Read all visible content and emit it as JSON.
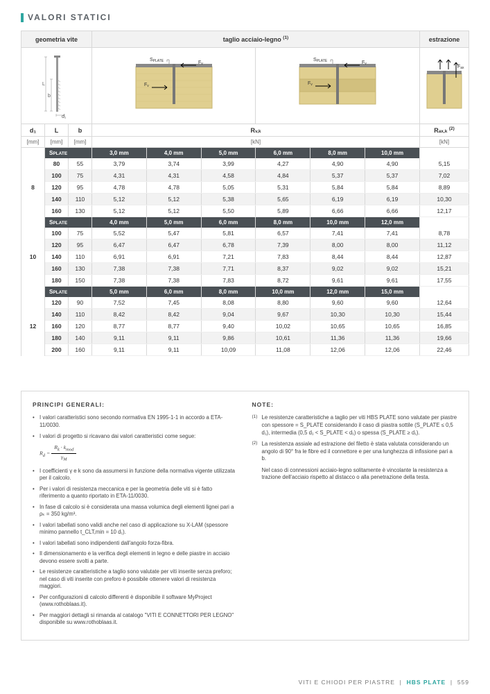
{
  "title": "VALORI STATICI",
  "accent_color": "#2ea6a0",
  "dark_bar": "#4a5055",
  "table": {
    "top_headers": [
      "geometria vite",
      "taglio acciaio-legno",
      "estrazione"
    ],
    "sup1": "(1)",
    "col_headers": {
      "d1": "d₁",
      "L": "L",
      "b": "b",
      "Rvk": "R",
      "Rvk_sub": "v,k",
      "Raxk": "R",
      "Raxk_sub": "ax,k",
      "sup2": "(2)"
    },
    "units": {
      "mm": "[mm]",
      "kN": "[kN]"
    },
    "splate_label": "SPLATE",
    "groups": [
      {
        "d1": "8",
        "splate_cols": [
          "3,0 mm",
          "4,0 mm",
          "5,0 mm",
          "6,0 mm",
          "8,0 mm",
          "10,0 mm"
        ],
        "rows": [
          {
            "L": "80",
            "b": "55",
            "v": [
              "3,79",
              "3,74",
              "3,99",
              "4,27",
              "4,90",
              "4,90"
            ],
            "ax": "5,15"
          },
          {
            "L": "100",
            "b": "75",
            "v": [
              "4,31",
              "4,31",
              "4,58",
              "4,84",
              "5,37",
              "5,37"
            ],
            "ax": "7,02"
          },
          {
            "L": "120",
            "b": "95",
            "v": [
              "4,78",
              "4,78",
              "5,05",
              "5,31",
              "5,84",
              "5,84"
            ],
            "ax": "8,89"
          },
          {
            "L": "140",
            "b": "110",
            "v": [
              "5,12",
              "5,12",
              "5,38",
              "5,65",
              "6,19",
              "6,19"
            ],
            "ax": "10,30"
          },
          {
            "L": "160",
            "b": "130",
            "v": [
              "5,12",
              "5,12",
              "5,50",
              "5,89",
              "6,66",
              "6,66"
            ],
            "ax": "12,17"
          }
        ]
      },
      {
        "d1": "10",
        "splate_cols": [
          "4,0 mm",
          "5,0 mm",
          "6,0 mm",
          "8,0 mm",
          "10,0 mm",
          "12,0 mm"
        ],
        "rows": [
          {
            "L": "100",
            "b": "75",
            "v": [
              "5,52",
              "5,47",
              "5,81",
              "6,57",
              "7,41",
              "7,41"
            ],
            "ax": "8,78"
          },
          {
            "L": "120",
            "b": "95",
            "v": [
              "6,47",
              "6,47",
              "6,78",
              "7,39",
              "8,00",
              "8,00"
            ],
            "ax": "11,12"
          },
          {
            "L": "140",
            "b": "110",
            "v": [
              "6,91",
              "6,91",
              "7,21",
              "7,83",
              "8,44",
              "8,44"
            ],
            "ax": "12,87"
          },
          {
            "L": "160",
            "b": "130",
            "v": [
              "7,38",
              "7,38",
              "7,71",
              "8,37",
              "9,02",
              "9,02"
            ],
            "ax": "15,21"
          },
          {
            "L": "180",
            "b": "150",
            "v": [
              "7,38",
              "7,38",
              "7,83",
              "8,72",
              "9,61",
              "9,61"
            ],
            "ax": "17,55"
          }
        ]
      },
      {
        "d1": "12",
        "splate_cols": [
          "5,0 mm",
          "6,0 mm",
          "8,0 mm",
          "10,0 mm",
          "12,0 mm",
          "15,0 mm"
        ],
        "rows": [
          {
            "L": "120",
            "b": "90",
            "v": [
              "7,52",
              "7,45",
              "8,08",
              "8,80",
              "9,60",
              "9,60"
            ],
            "ax": "12,64"
          },
          {
            "L": "140",
            "b": "110",
            "v": [
              "8,42",
              "8,42",
              "9,04",
              "9,67",
              "10,30",
              "10,30"
            ],
            "ax": "15,44"
          },
          {
            "L": "160",
            "b": "120",
            "v": [
              "8,77",
              "8,77",
              "9,40",
              "10,02",
              "10,65",
              "10,65"
            ],
            "ax": "16,85"
          },
          {
            "L": "180",
            "b": "140",
            "v": [
              "9,11",
              "9,11",
              "9,86",
              "10,61",
              "11,36",
              "11,36"
            ],
            "ax": "19,66"
          },
          {
            "L": "200",
            "b": "160",
            "v": [
              "9,11",
              "9,11",
              "10,09",
              "11,08",
              "12,06",
              "12,06"
            ],
            "ax": "22,46"
          }
        ]
      }
    ]
  },
  "diag_labels": {
    "L": "L",
    "b": "b",
    "d1": "d₁",
    "Splate": "S",
    "Splate_sub": "PLATE",
    "Fv": "F",
    "Fv_sub": "v",
    "Fax": "F",
    "Fax_sub": "ax"
  },
  "notes": {
    "left_title": "PRINCIPI GENERALI:",
    "left_items": [
      "I valori caratteristici sono secondo normativa EN 1995-1-1 in accordo a ETA-11/0030.",
      "I valori di progetto si ricavano dai valori caratteristici come segue:",
      "I coefficienti γ e k sono da assumersi in funzione della normativa vigente utilizzata per il calcolo.",
      "Per i valori di resistenza meccanica e per la geometria delle viti si è fatto riferimento a quanto riportato in ETA-11/0030.",
      "In fase di calcolo si è considerata una massa volumica degli elementi lignei pari a ρₖ = 350 kg/m³.",
      "I valori tabellati sono validi anche nel caso di applicazione su X-LAM (spessore minimo pannello t_CLT,min = 10 d₁).",
      "I valori tabellati sono indipendenti dall'angolo forza-fibra.",
      "Il dimensionamento e la verifica degli elementi in legno e delle piastre in acciaio devono essere svolti a parte.",
      "Le resistenze caratteristiche a taglio sono valutate per viti inserite senza preforo; nel caso di viti inserite con preforo è possibile ottenere valori di resistenza maggiori.",
      "Per configurazioni di calcolo differenti è disponibile il software MyProject (www.rothoblaas.it).",
      "Per maggiori dettagli si rimanda al catalogo \"VITI E CONNETTORI PER LEGNO\" disponibile su www.rothoblaas.it."
    ],
    "formula": {
      "Rd": "R",
      "d_sub": "d",
      "eq": "=",
      "Rk": "R",
      "k_sub": "k",
      "dot": "·",
      "kmod": "k",
      "mod_sub": "mod",
      "gammaM": "γ",
      "M_sub": "M"
    },
    "coeff_sub1": "M",
    "coeff_sub2": "mod",
    "right_title": "NOTE:",
    "right_items": [
      "Le resistenze caratteristiche a taglio per viti HBS PLATE sono valutate per piastre con spessore = S_PLATE considerando il caso di piastra sottile (S_PLATE ≤ 0,5 d₁), intermedia (0,5 d₁ < S_PLATE < d₁) o spessa (S_PLATE ≥ d₁).",
      "La resistenza assiale ad estrazione del filetto è stata valutata considerando un angolo di 90° fra le fibre ed il connettore e per una lunghezza di infissione pari a b."
    ],
    "right_note_extra": "Nel caso di connessioni acciaio-legno solitamente è vincolante la resistenza a trazione dell'acciaio rispetto al distacco o alla penetrazione della testa.",
    "sup1": "(1)",
    "sup2": "(2)"
  },
  "footer": {
    "text1": "VITI E CHIODI PER PIASTRE",
    "sep": "|",
    "text2": "HBS PLATE",
    "page": "559"
  }
}
